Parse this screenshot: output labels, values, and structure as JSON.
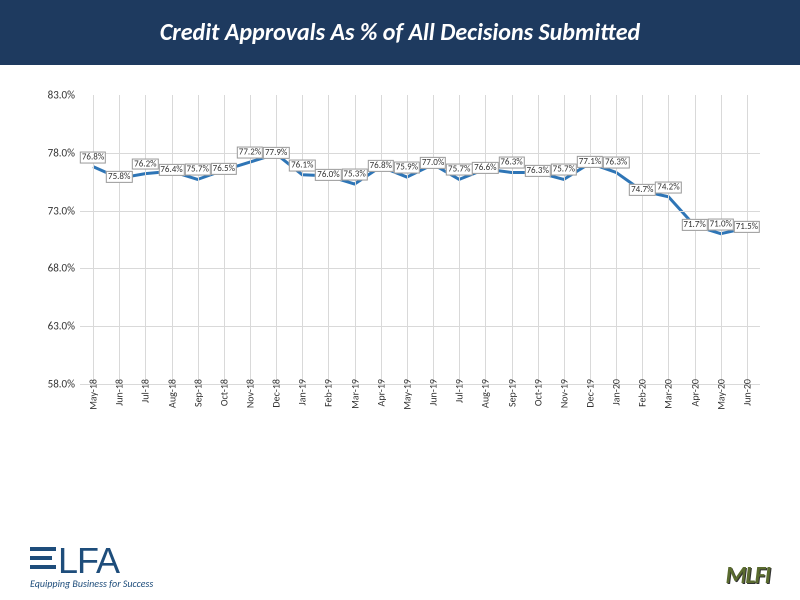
{
  "header": {
    "title": "Credit Approvals As % of All Decisions Submitted",
    "title_fontsize": 24,
    "bg": "#1e3a5f",
    "fg": "#ffffff"
  },
  "chart": {
    "type": "line",
    "categories": [
      "May-18",
      "Jun-18",
      "Jul-18",
      "Aug-18",
      "Sep-18",
      "Oct-18",
      "Nov-18",
      "Dec-18",
      "Jan-19",
      "Feb-19",
      "Mar-19",
      "Apr-19",
      "May-19",
      "Jun-19",
      "Jul-19",
      "Aug-19",
      "Sep-19",
      "Oct-19",
      "Nov-19",
      "Dec-19",
      "Jan-20",
      "Feb-20",
      "Mar-20",
      "Apr-20",
      "May-20",
      "Jun-20"
    ],
    "values": [
      76.8,
      75.8,
      76.2,
      76.4,
      75.7,
      76.5,
      77.2,
      77.9,
      76.1,
      76.0,
      75.3,
      76.8,
      75.9,
      77.0,
      75.7,
      76.6,
      76.3,
      76.3,
      75.7,
      77.1,
      76.3,
      74.7,
      74.2,
      71.7,
      71.0,
      71.5
    ],
    "label_suffix": "%",
    "ylim": [
      58.0,
      83.0
    ],
    "ytick_step": 5.0,
    "ytick_format": "pct1",
    "line_color": "#2e75b6",
    "line_width": 3,
    "grid_color": "#d9d9d9",
    "label_border": "#999999",
    "label_fontsize": 9,
    "axis_fontsize": 11,
    "xlabel_fontsize": 10,
    "background": "#ffffff"
  },
  "logos": {
    "elfa": {
      "text": "LFA",
      "tagline": "Equipping Business for Success",
      "color": "#1e4d7b"
    },
    "mlfi": {
      "text": "MLFI",
      "color": "#5a6b2f"
    }
  }
}
